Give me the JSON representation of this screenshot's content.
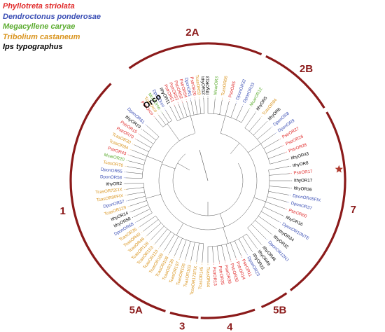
{
  "legend": [
    {
      "name": "Phyllotreta striolata",
      "color": "#e02b2b"
    },
    {
      "name": "Dendroctonus ponderosae",
      "color": "#3b4fb5"
    },
    {
      "name": "Megacyllene caryae",
      "color": "#5aab2e"
    },
    {
      "name": "Tribolium castaneum",
      "color": "#d9941e"
    },
    {
      "name": "Ips typographus",
      "color": "#000000"
    }
  ],
  "clade_color": "#8b1a1a",
  "star_color": "#b03a2e",
  "clades": [
    {
      "label": "Orco",
      "start": 320,
      "end": 330
    },
    {
      "label": "1",
      "start": 201,
      "end": 315
    },
    {
      "label": "2A",
      "start": 325,
      "end": 23
    },
    {
      "label": "2B",
      "start": 25,
      "end": 58
    },
    {
      "label": "7",
      "start": 60,
      "end": 143
    },
    {
      "label": "5B",
      "start": 145,
      "end": 157
    },
    {
      "label": "4",
      "start": 160,
      "end": 183
    },
    {
      "label": "3",
      "start": 184,
      "end": 196
    },
    {
      "label": "5A",
      "start": 198,
      "end": 220
    }
  ],
  "star_leaf": "PstrOR17",
  "leaves": [
    {
      "label": "IthyOR13",
      "sp": "Ips typographus",
      "angle": 0
    },
    {
      "label": "McarOR3",
      "sp": "Megacyllene caryae",
      "angle": 5
    },
    {
      "label": "TcasOR66",
      "sp": "Tribolium castaneum",
      "angle": 10
    },
    {
      "label": "PstrOR5",
      "sp": "Phyllotreta striolata",
      "angle": 15
    },
    {
      "label": "DponOR32",
      "sp": "Dendroctonus ponderosae",
      "angle": 20
    },
    {
      "label": "DponOR33",
      "sp": "Dendroctonus ponderosae",
      "angle": 25
    },
    {
      "label": "McarOR12",
      "sp": "Megacyllene caryae",
      "angle": 30
    },
    {
      "label": "IthyOR5",
      "sp": "Ips typographus",
      "angle": 35
    },
    {
      "label": "TcasOR84",
      "sp": "Tribolium castaneum",
      "angle": 40
    },
    {
      "label": "IthyOR6",
      "sp": "Ips typographus",
      "angle": 45
    },
    {
      "label": "DponOR8",
      "sp": "Dendroctonus ponderosae",
      "angle": 50
    },
    {
      "label": "DponOR9",
      "sp": "Dendroctonus ponderosae",
      "angle": 55
    },
    {
      "label": "PstrOR27",
      "sp": "Phyllotreta striolata",
      "angle": 60
    },
    {
      "label": "PstrOR26",
      "sp": "Phyllotreta striolata",
      "angle": 65
    },
    {
      "label": "PstrOR28",
      "sp": "Phyllotreta striolata",
      "angle": 70
    },
    {
      "label": "IthyOR43",
      "sp": "Ips typographus",
      "angle": 75
    },
    {
      "label": "IthyOR8",
      "sp": "Ips typographus",
      "angle": 80
    },
    {
      "label": "PstrOR17",
      "sp": "Phyllotreta striolata",
      "angle": 85
    },
    {
      "label": "IthyOR17",
      "sp": "Ips typographus",
      "angle": 90
    },
    {
      "label": "IthyOR36",
      "sp": "Ips typographus",
      "angle": 95
    },
    {
      "label": "DponOR45FIX",
      "sp": "Dendroctonus ponderosae",
      "angle": 100
    },
    {
      "label": "DponOR37",
      "sp": "Dendroctonus ponderosae",
      "angle": 105
    },
    {
      "label": "PstrOR60",
      "sp": "Phyllotreta striolata",
      "angle": 110
    },
    {
      "label": "IthyOR16",
      "sp": "Ips typographus",
      "angle": 115
    },
    {
      "label": "DponOR10NTE",
      "sp": "Dendroctonus ponderosae",
      "angle": 120
    },
    {
      "label": "IthyOR34",
      "sp": "Ips typographus",
      "angle": 125
    },
    {
      "label": "IthyOR32",
      "sp": "Ips typographus",
      "angle": 130
    },
    {
      "label": "DponOR12NJ",
      "sp": "Dendroctonus ponderosae",
      "angle": 135
    },
    {
      "label": "IthyOR46",
      "sp": "Ips typographus",
      "angle": 140
    },
    {
      "label": "IthyOR49",
      "sp": "Ips typographus",
      "angle": 144
    },
    {
      "label": "IthyOR23",
      "sp": "Ips typographus",
      "angle": 148
    },
    {
      "label": "DponOR23",
      "sp": "Dendroctonus ponderosae",
      "angle": 152
    },
    {
      "label": "PstrOR11",
      "sp": "Phyllotreta striolata",
      "angle": 156
    },
    {
      "label": "PstrOR14",
      "sp": "Phyllotreta striolata",
      "angle": 160
    },
    {
      "label": "PstrOR38",
      "sp": "Phyllotreta striolata",
      "angle": 164
    },
    {
      "label": "PstrOR39",
      "sp": "Phyllotreta striolata",
      "angle": 168
    },
    {
      "label": "PstrOR35",
      "sp": "Phyllotreta striolata",
      "angle": 172
    },
    {
      "label": "PstrOR13",
      "sp": "Phyllotreta striolata",
      "angle": 176
    },
    {
      "label": "TcasOR44",
      "sp": "Tribolium castaneum",
      "angle": 180
    },
    {
      "label": "TcasOR145",
      "sp": "Tribolium castaneum",
      "angle": 184
    },
    {
      "label": "TcasOR171FIX",
      "sp": "Tribolium castaneum",
      "angle": 188
    },
    {
      "label": "TcasOR103",
      "sp": "Tribolium castaneum",
      "angle": 192
    },
    {
      "label": "TcasOR106",
      "sp": "Tribolium castaneum",
      "angle": 196
    },
    {
      "label": "TcasOR107",
      "sp": "Tribolium castaneum",
      "angle": 200
    },
    {
      "label": "TcasOR136",
      "sp": "Tribolium castaneum",
      "angle": 204
    },
    {
      "label": "TcasOR108",
      "sp": "Tribolium castaneum",
      "angle": 208
    },
    {
      "label": "TcasOR109",
      "sp": "Tribolium castaneum",
      "angle": 212
    },
    {
      "label": "TcasOR110",
      "sp": "Tribolium castaneum",
      "angle": 216
    },
    {
      "label": "TcasOR153",
      "sp": "Tribolium castaneum",
      "angle": 220
    },
    {
      "label": "TcasOR128",
      "sp": "Tribolium castaneum",
      "angle": 224
    },
    {
      "label": "TcasOR46",
      "sp": "Tribolium castaneum",
      "angle": 228
    },
    {
      "label": "TcasOR40",
      "sp": "Tribolium castaneum",
      "angle": 232
    },
    {
      "label": "TcasOR35",
      "sp": "Tribolium castaneum",
      "angle": 236
    },
    {
      "label": "DponOR68",
      "sp": "Dendroctonus ponderosae",
      "angle": 240
    },
    {
      "label": "IthyOR58",
      "sp": "Ips typographus",
      "angle": 244
    },
    {
      "label": "IthyOR14",
      "sp": "Ips typographus",
      "angle": 248
    },
    {
      "label": "TcasOR129",
      "sp": "Tribolium castaneum",
      "angle": 252
    },
    {
      "label": "DponOR57",
      "sp": "Dendroctonus ponderosae",
      "angle": 256
    },
    {
      "label": "TcasOR90FIX",
      "sp": "Tribolium castaneum",
      "angle": 260
    },
    {
      "label": "TcasOR72FIX",
      "sp": "Tribolium castaneum",
      "angle": 264
    },
    {
      "label": "IthyOR2",
      "sp": "Ips typographus",
      "angle": 268
    },
    {
      "label": "DponOR58",
      "sp": "Dendroctonus ponderosae",
      "angle": 272
    },
    {
      "label": "DponOR65",
      "sp": "Dendroctonus ponderosae",
      "angle": 276
    },
    {
      "label": "TcasOR76",
      "sp": "Tribolium castaneum",
      "angle": 280
    },
    {
      "label": "McarOR20",
      "sp": "Megacyllene caryae",
      "angle": 284
    },
    {
      "label": "PstrOR43",
      "sp": "Phyllotreta striolata",
      "angle": 288
    },
    {
      "label": "TcasOR84",
      "sp": "Tribolium castaneum",
      "angle": 292
    },
    {
      "label": "TcasOR30",
      "sp": "Tribolium castaneum",
      "angle": 296
    },
    {
      "label": "PstrOR70",
      "sp": "Phyllotreta striolata",
      "angle": 300
    },
    {
      "label": "PstrOR15",
      "sp": "Phyllotreta striolata",
      "angle": 304
    },
    {
      "label": "IthyOR19",
      "sp": "Ips typographus",
      "angle": 308
    },
    {
      "label": "DponOR61",
      "sp": "Dendroctonus ponderosae",
      "angle": 312
    },
    {
      "label": "PstrOrco",
      "sp": "Phyllotreta striolata",
      "angle": 320
    },
    {
      "label": "TcasOrco",
      "sp": "Tribolium castaneum",
      "angle": 323
    },
    {
      "label": "McarOrco",
      "sp": "Megacyllene caryae",
      "angle": 326
    },
    {
      "label": "DponOrco",
      "sp": "Dendroctonus ponderosae",
      "angle": 329
    },
    {
      "label": "IthyOR11",
      "sp": "Ips typographus",
      "angle": 333
    },
    {
      "label": "PstrOR51",
      "sp": "Phyllotreta striolata",
      "angle": 336
    },
    {
      "label": "PstrOR53",
      "sp": "Phyllotreta striolata",
      "angle": 339
    },
    {
      "label": "PstrOR52",
      "sp": "Phyllotreta striolata",
      "angle": 342
    },
    {
      "label": "PstrOR54",
      "sp": "Phyllotreta striolata",
      "angle": 345
    },
    {
      "label": "DponOR1",
      "sp": "Dendroctonus ponderosae",
      "angle": 348
    },
    {
      "label": "PstrOR20",
      "sp": "Phyllotreta striolata",
      "angle": 351
    },
    {
      "label": "TcasOR59",
      "sp": "Tribolium castaneum",
      "angle": 354
    },
    {
      "label": "IthyOR12",
      "sp": "Ips typographus",
      "angle": 357
    }
  ]
}
